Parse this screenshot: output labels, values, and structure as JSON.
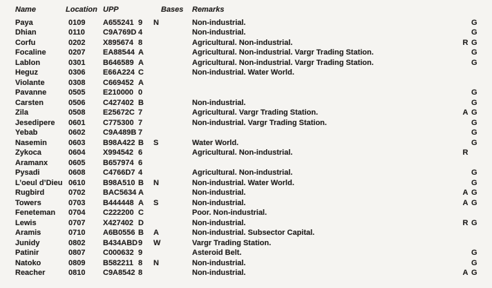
{
  "page": {
    "background_color": "#f5f4f1",
    "text_color": "#211f1e"
  },
  "table": {
    "headers": {
      "name": "Name",
      "location": "Location",
      "upp": "UPP",
      "tl": "",
      "bases": "Bases",
      "remarks": "Remarks"
    },
    "rows": [
      {
        "name": "Paya",
        "location": "0109",
        "upp": "A655241",
        "tl": "9",
        "bases": "N",
        "remarks": "Non-industrial.",
        "zone": "",
        "gas_giant": "G"
      },
      {
        "name": "Dhian",
        "location": "0110",
        "upp": "C9A769D",
        "tl": "4",
        "bases": "",
        "remarks": "Non-industrial.",
        "zone": "",
        "gas_giant": "G"
      },
      {
        "name": "Corfu",
        "location": "0202",
        "upp": "X895674",
        "tl": "8",
        "bases": "",
        "remarks": "Agricultural. Non-industrial.",
        "zone": "R",
        "gas_giant": "G"
      },
      {
        "name": "Focaline",
        "location": "0207",
        "upp": "EA88544",
        "tl": "A",
        "bases": "",
        "remarks": "Agricultural. Non-industrial. Vargr Trading Station.",
        "zone": "",
        "gas_giant": "G"
      },
      {
        "name": "Lablon",
        "location": "0301",
        "upp": "B646589",
        "tl": "A",
        "bases": "",
        "remarks": "Agricultural. Non-industrial. Vargr Trading Station.",
        "zone": "",
        "gas_giant": "G"
      },
      {
        "name": "Heguz",
        "location": "0306",
        "upp": "E66A224",
        "tl": "C",
        "bases": "",
        "remarks": "Non-industrial. Water World.",
        "zone": "",
        "gas_giant": ""
      },
      {
        "name": "Violante",
        "location": "0308",
        "upp": "C669452",
        "tl": "A",
        "bases": "",
        "remarks": "",
        "zone": "",
        "gas_giant": ""
      },
      {
        "name": "Pavanne",
        "location": "0505",
        "upp": "E210000",
        "tl": "0",
        "bases": "",
        "remarks": "",
        "zone": "",
        "gas_giant": "G"
      },
      {
        "name": "Carsten",
        "location": "0506",
        "upp": "C427402",
        "tl": "B",
        "bases": "",
        "remarks": "Non-industrial.",
        "zone": "",
        "gas_giant": "G"
      },
      {
        "name": "Zila",
        "location": "0508",
        "upp": "E25672C",
        "tl": "7",
        "bases": "",
        "remarks": "Agricultural. Vargr Trading Station.",
        "zone": "A",
        "gas_giant": "G"
      },
      {
        "name": "Jesedipere",
        "location": "0601",
        "upp": "C775300",
        "tl": "7",
        "bases": "",
        "remarks": "Non-industrial. Vargr Trading Station.",
        "zone": "",
        "gas_giant": "G"
      },
      {
        "name": "Yebab",
        "location": "0602",
        "upp": "C9A489B",
        "tl": "7",
        "bases": "",
        "remarks": "",
        "zone": "",
        "gas_giant": "G"
      },
      {
        "name": "Nasemin",
        "location": "0603",
        "upp": "B98A422",
        "tl": "B",
        "bases": "S",
        "remarks": "Water World.",
        "zone": "",
        "gas_giant": "G"
      },
      {
        "name": "Zykoca",
        "location": "0604",
        "upp": "X994542",
        "tl": "6",
        "bases": "",
        "remarks": "Agricultural. Non-industrial.",
        "zone": "R",
        "gas_giant": ""
      },
      {
        "name": "Aramanx",
        "location": "0605",
        "upp": "B657974",
        "tl": "6",
        "bases": "",
        "remarks": "",
        "zone": "",
        "gas_giant": ""
      },
      {
        "name": "Pysadi",
        "location": "0608",
        "upp": "C4766D7",
        "tl": "4",
        "bases": "",
        "remarks": "Agricultural. Non-industrial.",
        "zone": "",
        "gas_giant": "G"
      },
      {
        "name": "L’oeul d’Dieu",
        "location": "0610",
        "upp": "B98A510",
        "tl": "B",
        "bases": "N",
        "remarks": "Non-industrial. Water World.",
        "zone": "",
        "gas_giant": "G"
      },
      {
        "name": "Rugbird",
        "location": "0702",
        "upp": "BAC5634",
        "tl": "A",
        "bases": "",
        "remarks": "Non-industrial.",
        "zone": "A",
        "gas_giant": "G"
      },
      {
        "name": "Towers",
        "location": "0703",
        "upp": "B444448",
        "tl": "A",
        "bases": "S",
        "remarks": "Non-industrial.",
        "zone": "A",
        "gas_giant": "G"
      },
      {
        "name": "Feneteman",
        "location": "0704",
        "upp": "C222200",
        "tl": "C",
        "bases": "",
        "remarks": "Poor. Non-industrial.",
        "zone": "",
        "gas_giant": ""
      },
      {
        "name": "Lewis",
        "location": "0707",
        "upp": "X427402",
        "tl": "D",
        "bases": "",
        "remarks": "Non-industrial.",
        "zone": "R",
        "gas_giant": "G"
      },
      {
        "name": "Aramis",
        "location": "0710",
        "upp": "A6B0556",
        "tl": "B",
        "bases": "A",
        "remarks": "Non-industrial. Subsector Capital.",
        "zone": "",
        "gas_giant": ""
      },
      {
        "name": "Junidy",
        "location": "0802",
        "upp": "B434ABD",
        "tl": "9",
        "bases": "W",
        "remarks": "Vargr Trading Station.",
        "zone": "",
        "gas_giant": ""
      },
      {
        "name": "Patinir",
        "location": "0807",
        "upp": "C000632",
        "tl": "9",
        "bases": "",
        "remarks": "Asteroid Belt.",
        "zone": "",
        "gas_giant": "G"
      },
      {
        "name": "Natoko",
        "location": "0809",
        "upp": "B582211",
        "tl": "8",
        "bases": "N",
        "remarks": "Non-industrial.",
        "zone": "",
        "gas_giant": "G"
      },
      {
        "name": "Reacher",
        "location": "0810",
        "upp": "C9A8542",
        "tl": "8",
        "bases": "",
        "remarks": "Non-industrial.",
        "zone": "A",
        "gas_giant": "G"
      }
    ]
  }
}
